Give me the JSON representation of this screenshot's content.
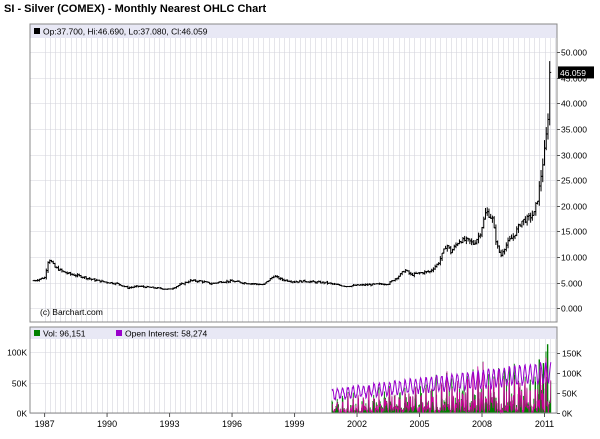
{
  "chart_title": "SI - Silver (COMEX) - Monthly Nearest OHLC Chart",
  "colors": {
    "plot_bg": "#ffffff",
    "header_bg": "#e8e8f5",
    "grid": "#d4d4dc",
    "frame": "#888888",
    "bars": "#000000",
    "volume": "#008000",
    "open_interest": "#9900cc",
    "oi_marker": "#cc0099",
    "label_bg": "#000000",
    "label_text": "#ffffff"
  },
  "chart_data": [
    {
      "type": "ohlc",
      "title": "SI - Silver (COMEX) - Monthly Nearest OHLC Chart",
      "legend": {
        "marker_color": "#000000",
        "text": "Op:37.700, Hi:46.690, Lo:37.080, Cl:46.059",
        "placement": "top-left"
      },
      "last_value_label": "46.059",
      "watermark": "(c) Barchart.com",
      "y_ticks": [
        "50.000",
        "45.000",
        "40.000",
        "35.000",
        "30.000",
        "25.000",
        "20.000",
        "15.000",
        "10.000",
        "5.000",
        "0.000"
      ],
      "x_ticks": [
        "1987",
        "1990",
        "1993",
        "1996",
        "1999",
        "2002",
        "2005",
        "2008",
        "2011"
      ],
      "ylim": [
        -1.5,
        52
      ],
      "xlim": [
        1986.3,
        2011.6
      ],
      "grid": true,
      "price_path": [
        [
          1986.5,
          5.4
        ],
        [
          1987.0,
          6.0
        ],
        [
          1987.2,
          9.8
        ],
        [
          1987.5,
          8.0
        ],
        [
          1987.9,
          7.1
        ],
        [
          1988.3,
          6.6
        ],
        [
          1988.8,
          6.2
        ],
        [
          1989.3,
          5.6
        ],
        [
          1989.8,
          5.2
        ],
        [
          1990.5,
          4.8
        ],
        [
          1991.0,
          4.0
        ],
        [
          1991.5,
          4.3
        ],
        [
          1992.0,
          4.1
        ],
        [
          1992.5,
          3.9
        ],
        [
          1993.0,
          3.7
        ],
        [
          1993.5,
          4.6
        ],
        [
          1994.0,
          5.4
        ],
        [
          1994.5,
          5.3
        ],
        [
          1995.0,
          4.8
        ],
        [
          1995.5,
          5.2
        ],
        [
          1996.0,
          5.3
        ],
        [
          1996.5,
          5.0
        ],
        [
          1997.0,
          4.8
        ],
        [
          1997.5,
          4.6
        ],
        [
          1998.0,
          6.3
        ],
        [
          1998.4,
          5.6
        ],
        [
          1999.0,
          5.2
        ],
        [
          1999.5,
          5.3
        ],
        [
          2000.0,
          5.1
        ],
        [
          2000.5,
          5.0
        ],
        [
          2001.0,
          4.6
        ],
        [
          2001.5,
          4.3
        ],
        [
          2002.0,
          4.5
        ],
        [
          2002.5,
          4.6
        ],
        [
          2003.0,
          4.7
        ],
        [
          2003.5,
          4.8
        ],
        [
          2004.0,
          6.3
        ],
        [
          2004.3,
          7.5
        ],
        [
          2004.6,
          6.5
        ],
        [
          2005.0,
          6.9
        ],
        [
          2005.5,
          7.2
        ],
        [
          2005.9,
          8.8
        ],
        [
          2006.3,
          12.5
        ],
        [
          2006.5,
          11.0
        ],
        [
          2006.9,
          13.2
        ],
        [
          2007.3,
          13.3
        ],
        [
          2007.6,
          12.6
        ],
        [
          2007.9,
          14.5
        ],
        [
          2008.2,
          19.0
        ],
        [
          2008.5,
          17.4
        ],
        [
          2008.7,
          12.5
        ],
        [
          2008.9,
          10.2
        ],
        [
          2009.0,
          11.3
        ],
        [
          2009.3,
          13.2
        ],
        [
          2009.5,
          14.0
        ],
        [
          2009.9,
          17.0
        ],
        [
          2010.2,
          17.5
        ],
        [
          2010.5,
          18.5
        ],
        [
          2010.7,
          22.0
        ],
        [
          2010.9,
          28.0
        ],
        [
          2011.0,
          30.5
        ],
        [
          2011.15,
          36.0
        ],
        [
          2011.25,
          46.059
        ]
      ]
    },
    {
      "type": "bar",
      "title": "",
      "legend": [
        {
          "marker_color": "#008000",
          "text": "Vol: 96,151"
        },
        {
          "marker_color": "#9900cc",
          "text": "Open Interest: 58,274"
        }
      ],
      "y_ticks_left": [
        "100K",
        "50K",
        "0K"
      ],
      "y_ticks_right": [
        "150K",
        "100K",
        "50K",
        "0K"
      ],
      "x_ticks": [
        "1987",
        "1990",
        "1993",
        "1996",
        "1999",
        "2002",
        "2005",
        "2008",
        "2011"
      ],
      "grid": true,
      "volume_ylim": [
        0,
        115000
      ],
      "oi_ylim": [
        0,
        175000
      ],
      "data_start": 2000.8
    }
  ]
}
